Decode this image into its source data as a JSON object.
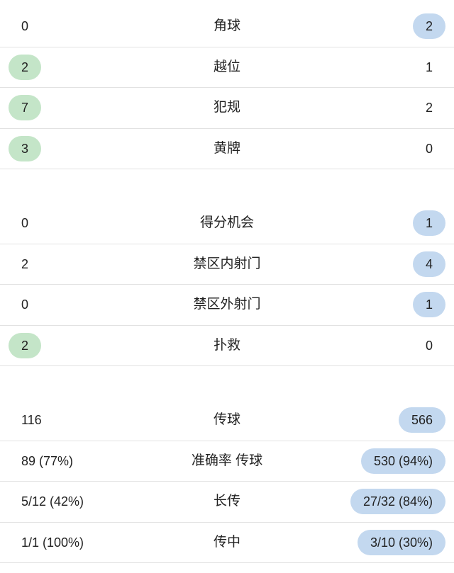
{
  "colors": {
    "home_highlight": "#c4e5c8",
    "away_highlight": "#c3d8ef",
    "text": "#222222",
    "divider": "#e2e2e2"
  },
  "groups": [
    {
      "rows": [
        {
          "label": "角球",
          "home": "0",
          "away": "2",
          "leader": "away"
        },
        {
          "label": "越位",
          "home": "2",
          "away": "1",
          "leader": "home"
        },
        {
          "label": "犯规",
          "home": "7",
          "away": "2",
          "leader": "home"
        },
        {
          "label": "黄牌",
          "home": "3",
          "away": "0",
          "leader": "home"
        }
      ]
    },
    {
      "rows": [
        {
          "label": "得分机会",
          "home": "0",
          "away": "1",
          "leader": "away"
        },
        {
          "label": "禁区内射门",
          "home": "2",
          "away": "4",
          "leader": "away"
        },
        {
          "label": "禁区外射门",
          "home": "0",
          "away": "1",
          "leader": "away"
        },
        {
          "label": "扑救",
          "home": "2",
          "away": "0",
          "leader": "home"
        }
      ]
    },
    {
      "rows": [
        {
          "label": "传球",
          "home": "116",
          "away": "566",
          "leader": "away"
        },
        {
          "label": "准确率 传球",
          "home": "89 (77%)",
          "away": "530 (94%)",
          "leader": "away"
        },
        {
          "label": "长传",
          "home": "5/12 (42%)",
          "away": "27/32 (84%)",
          "leader": "away"
        },
        {
          "label": "传中",
          "home": "1/1 (100%)",
          "away": "3/10 (30%)",
          "leader": "away"
        }
      ]
    }
  ]
}
